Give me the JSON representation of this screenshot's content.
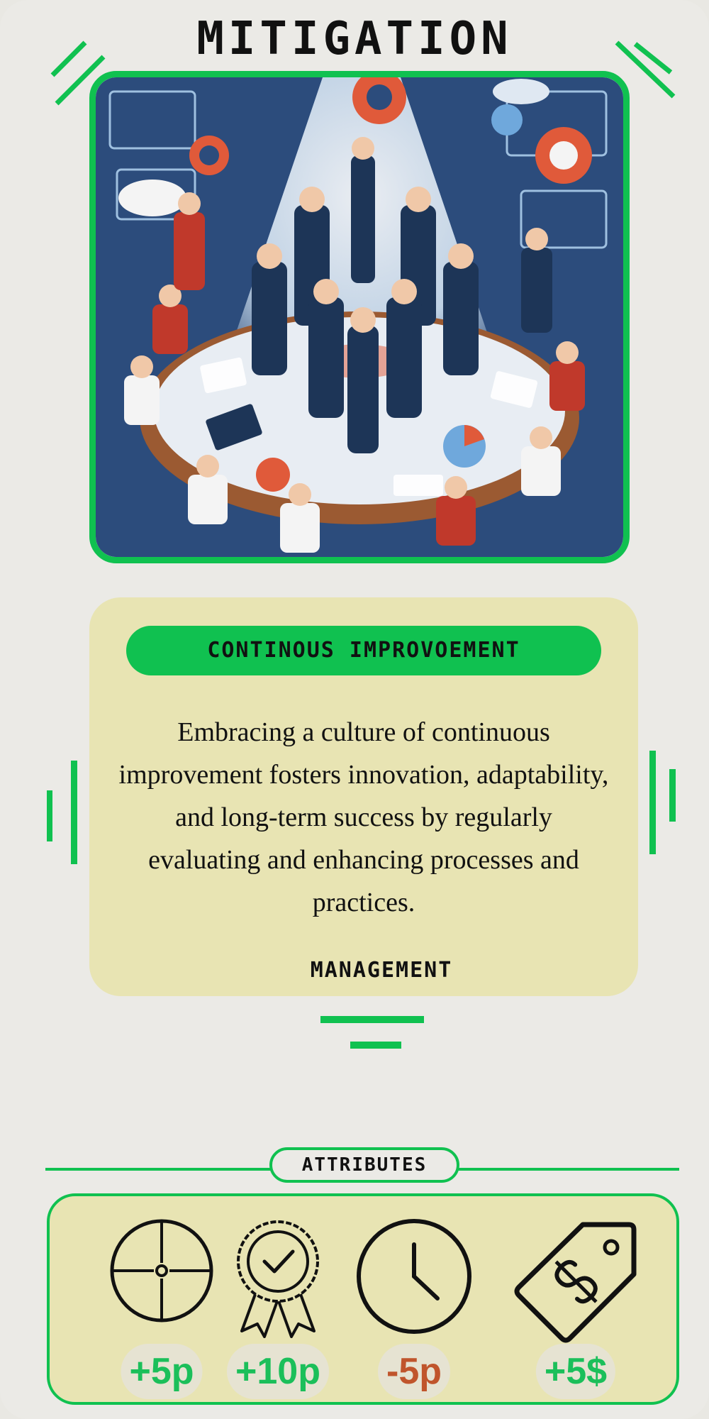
{
  "card": {
    "title": "MITIGATION",
    "subtitle": "CONTINOUS IMPROVOEMENT",
    "description": "Embracing a culture of continuous improvement fosters innovation, adaptability, and long-term success by regularly evaluating and enhancing processes and practices.",
    "category": "MANAGEMENT",
    "illustration_icon": "team-collaboration-illustration"
  },
  "attributes": {
    "label": "ATTRIBUTES",
    "items": [
      {
        "icon": "crosshair-icon",
        "value": "+5p",
        "color": "#1bbf5a"
      },
      {
        "icon": "award-badge-icon",
        "value": "+10p",
        "color": "#1bbf5a"
      },
      {
        "icon": "clock-icon",
        "value": "-5p",
        "color": "#c0552c"
      },
      {
        "icon": "price-tag-dollar-icon",
        "value": "+5$",
        "color": "#1bbf5a"
      }
    ]
  },
  "colors": {
    "accent": "#10c150",
    "panel": "#e8e4b3",
    "background": "#ebeae6",
    "negative": "#c0552c"
  }
}
